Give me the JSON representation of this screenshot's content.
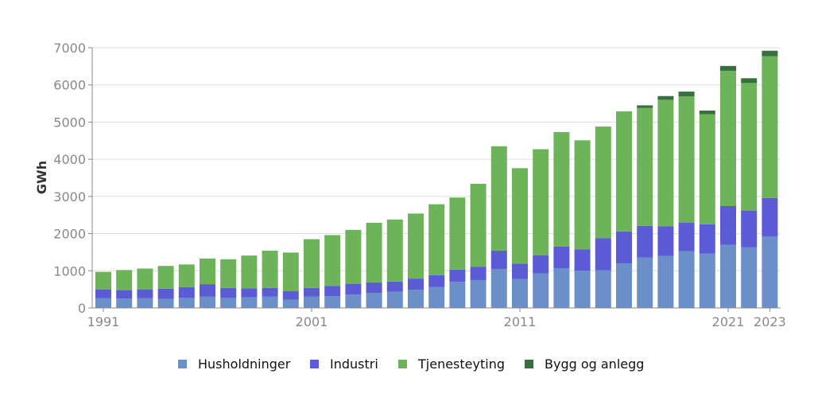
{
  "colors": {
    "husholdninger": "#6a8fc9",
    "industri": "#5b5bd6",
    "tjenesteyting": "#6cb35a",
    "bygg": "#3a6e3f",
    "grid": "#dddddd",
    "axis": "#888888"
  },
  "chart_data": {
    "type": "bar",
    "stacked": true,
    "ylabel": "GWh",
    "ylim": [
      0,
      7000
    ],
    "yticks": [
      0,
      1000,
      2000,
      3000,
      4000,
      5000,
      6000,
      7000
    ],
    "ytick_labels": [
      "0",
      "1000",
      "2000",
      "3000",
      "4000",
      "5000",
      "6000",
      "7000"
    ],
    "xtick_labels": [
      {
        "label": "1991",
        "year": 1991
      },
      {
        "label": "2001",
        "year": 2001
      },
      {
        "label": "2011",
        "year": 2011
      },
      {
        "label": "2021",
        "year": 2021
      },
      {
        "label": "2023",
        "year": 2023
      }
    ],
    "grid": true,
    "legend_position": "bottom",
    "categories": [
      1991,
      1992,
      1993,
      1994,
      1995,
      1996,
      1997,
      1998,
      1999,
      2000,
      2001,
      2002,
      2003,
      2004,
      2005,
      2006,
      2007,
      2008,
      2009,
      2010,
      2011,
      2012,
      2013,
      2014,
      2015,
      2016,
      2017,
      2018,
      2019,
      2020,
      2021,
      2022,
      2023
    ],
    "series": [
      {
        "name": "Husholdninger",
        "key": "husholdninger",
        "values": [
          260,
          250,
          260,
          240,
          270,
          310,
          270,
          290,
          310,
          220,
          310,
          320,
          360,
          400,
          440,
          490,
          560,
          700,
          750,
          1050,
          780,
          930,
          1070,
          1000,
          1010,
          1200,
          1360,
          1400,
          1530,
          1460,
          1700,
          1630,
          1920
        ]
      },
      {
        "name": "Industri",
        "key": "industri",
        "values": [
          240,
          230,
          240,
          280,
          290,
          330,
          270,
          240,
          230,
          230,
          230,
          270,
          290,
          290,
          270,
          300,
          320,
          330,
          360,
          490,
          410,
          490,
          580,
          580,
          870,
          860,
          850,
          800,
          760,
          790,
          1040,
          990,
          1040
        ]
      },
      {
        "name": "Tjenesteyting",
        "key": "tjenesteyting",
        "values": [
          470,
          540,
          560,
          610,
          610,
          690,
          770,
          880,
          1000,
          1040,
          1310,
          1370,
          1450,
          1600,
          1670,
          1750,
          1910,
          1940,
          2230,
          2810,
          2570,
          2850,
          3080,
          2930,
          3000,
          3230,
          3170,
          3400,
          3400,
          2960,
          3640,
          3430,
          3810
        ]
      },
      {
        "name": "Bygg og anlegg",
        "key": "bygg",
        "values": [
          0,
          0,
          0,
          0,
          0,
          0,
          0,
          0,
          0,
          0,
          0,
          0,
          0,
          0,
          0,
          0,
          0,
          0,
          0,
          0,
          0,
          0,
          0,
          0,
          0,
          0,
          70,
          100,
          130,
          100,
          130,
          130,
          150
        ]
      }
    ]
  }
}
